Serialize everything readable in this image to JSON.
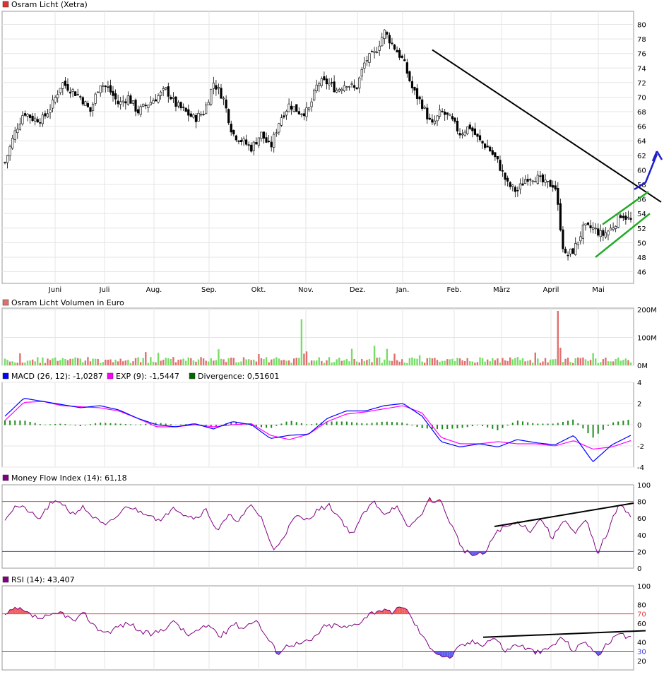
{
  "chart_data": [
    {
      "type": "candlestick",
      "title": "Osram Licht (Xetra)",
      "legend_color": "#e03030",
      "x_ticks": [
        "Juni",
        "Juli",
        "Aug.",
        "Sep.",
        "Okt.",
        "Nov.",
        "Dez.",
        "Jan.",
        "Feb.",
        "März",
        "April",
        "Mai"
      ],
      "y_ticks": [
        46,
        48,
        50,
        52,
        54,
        56,
        58,
        60,
        62,
        64,
        66,
        68,
        70,
        72,
        74,
        76,
        78,
        80
      ],
      "ylim": [
        44.4,
        81.8
      ],
      "grid": true,
      "close_approx": [
        61,
        65,
        68,
        67,
        67,
        69,
        72,
        71,
        70,
        68,
        72,
        71,
        69,
        70,
        68,
        69,
        70,
        71,
        69,
        68,
        67,
        68,
        72,
        70,
        65,
        64,
        63,
        65,
        63,
        67,
        69,
        68,
        68,
        72,
        72,
        71,
        72,
        71,
        75,
        76,
        79,
        77,
        75,
        71,
        69,
        66,
        68,
        67,
        65,
        66,
        64,
        63,
        61,
        58,
        57,
        59,
        59,
        58,
        58,
        48,
        49,
        52,
        52,
        51,
        52,
        54,
        53
      ],
      "trendlines": [
        {
          "color": "#000000",
          "from": [
            "Jan.",
            76.5
          ],
          "to": [
            "end",
            52
          ]
        },
        {
          "color": "#1aa11a",
          "channel_lower": [
            48,
            54
          ],
          "channel_upper": [
            52.5,
            57
          ]
        }
      ],
      "arrow_color": "#1f1fd0"
    },
    {
      "type": "bar",
      "title": "Osram Licht Volumen in Euro",
      "legend_color": "#e07070",
      "y_ticks": [
        "0M",
        "100M",
        "200M"
      ],
      "ylim": [
        0,
        200
      ],
      "spike_values": [
        165,
        70,
        195
      ]
    },
    {
      "type": "line",
      "title": "MACD (26, 12): -1,0287",
      "legend_color": "#0000ff",
      "series": [
        {
          "name": "MACD (26, 12): -1,0287",
          "color": "#0000ff"
        },
        {
          "name": "EXP (9): -1,5447",
          "color": "#ff00ff"
        },
        {
          "name": "Divergence: 0,51601",
          "color": "#006600"
        }
      ],
      "y_ticks": [
        4,
        2,
        0,
        -2,
        -4
      ],
      "ylim": [
        -4,
        4
      ],
      "macd": [
        0.8,
        2.5,
        2.2,
        1.9,
        1.6,
        1.8,
        1.4,
        0.6,
        0.0,
        -0.2,
        0.1,
        -0.4,
        0.3,
        0.0,
        -1.3,
        -1.0,
        -0.9,
        0.6,
        1.3,
        1.3,
        1.8,
        2.0,
        0.8,
        -1.6,
        -2.1,
        -1.8,
        -2.1,
        -1.4,
        -1.7,
        -1.9,
        -1.0,
        -3.5,
        -1.9,
        -1.0
      ],
      "signal": [
        0.4,
        2.1,
        2.2,
        1.8,
        1.7,
        1.6,
        1.3,
        0.6,
        -0.2,
        -0.2,
        0.0,
        -0.2,
        0.0,
        0.1,
        -1.0,
        -1.4,
        -0.9,
        0.3,
        1.0,
        1.2,
        1.5,
        1.8,
        1.1,
        -1.2,
        -1.8,
        -1.8,
        -1.6,
        -1.8,
        -1.8,
        -2.0,
        -1.5,
        -2.3,
        -2.1,
        -1.5
      ]
    },
    {
      "type": "line",
      "title": "Money Flow Index (14): 61,18",
      "legend_color": "#800080",
      "series": [
        {
          "name": "Money Flow Index (14): 61,18",
          "color": "#800080"
        }
      ],
      "y_ticks": [
        0,
        20,
        40,
        60,
        80,
        100
      ],
      "ylim": [
        0,
        100
      ],
      "band_lines": {
        "upper": 80,
        "lower": 20
      },
      "values": [
        60,
        75,
        70,
        58,
        76,
        80,
        65,
        73,
        60,
        50,
        62,
        75,
        68,
        65,
        55,
        75,
        65,
        60,
        70,
        45,
        62,
        58,
        75,
        60,
        20,
        40,
        62,
        58,
        70,
        75,
        60,
        40,
        63,
        80,
        65,
        75,
        48,
        60,
        82,
        80,
        50,
        22,
        15,
        18,
        45,
        50,
        55,
        45,
        60,
        35,
        60,
        40,
        58,
        18,
        45,
        80,
        61
      ],
      "trendline": {
        "color": "#000000",
        "from": 50,
        "to": 78
      }
    },
    {
      "type": "line",
      "title": "RSI (14): 43,407",
      "legend_color": "#800080",
      "series": [
        {
          "name": "RSI (14): 43,407",
          "color": "#800080"
        }
      ],
      "y_ticks": [
        20,
        30,
        40,
        60,
        70,
        80,
        100
      ],
      "highlight_ticks": {
        "70": "#e04040",
        "30": "#4040e0"
      },
      "ylim": [
        10,
        100
      ],
      "band_lines": {
        "upper": 70,
        "lower": 30
      },
      "values": [
        68,
        76,
        70,
        65,
        67,
        72,
        62,
        70,
        55,
        50,
        57,
        60,
        50,
        48,
        55,
        62,
        47,
        52,
        58,
        45,
        60,
        55,
        65,
        45,
        28,
        38,
        38,
        42,
        56,
        58,
        55,
        60,
        70,
        75,
        70,
        80,
        60,
        40,
        28,
        22,
        35,
        40,
        38,
        45,
        30,
        38,
        32,
        28,
        35,
        45,
        30,
        42,
        25,
        38,
        48,
        43
      ],
      "trendline": {
        "color": "#000000",
        "from": 45,
        "to": 52
      }
    }
  ]
}
